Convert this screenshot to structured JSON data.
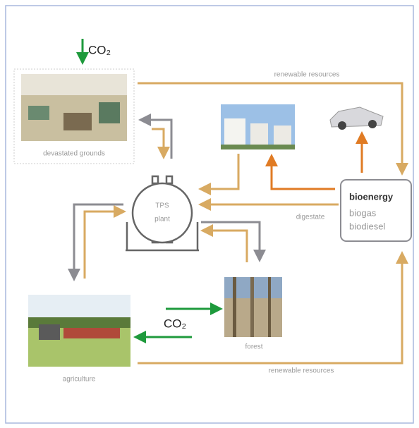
{
  "co2_top": "CO₂",
  "renewable_top": "renewable  resources",
  "devastated": "devastated grounds",
  "plant": {
    "line1": "TPS",
    "line2": "plant"
  },
  "bioenergy": {
    "title": "bioenergy",
    "item1": "biogas",
    "item2": "biodiesel"
  },
  "digestate": "digestate",
  "co2_middle": "CO₂",
  "forest": "forest",
  "agriculture": "agriculture",
  "renewable_bottom": "renewable  resources"
}
